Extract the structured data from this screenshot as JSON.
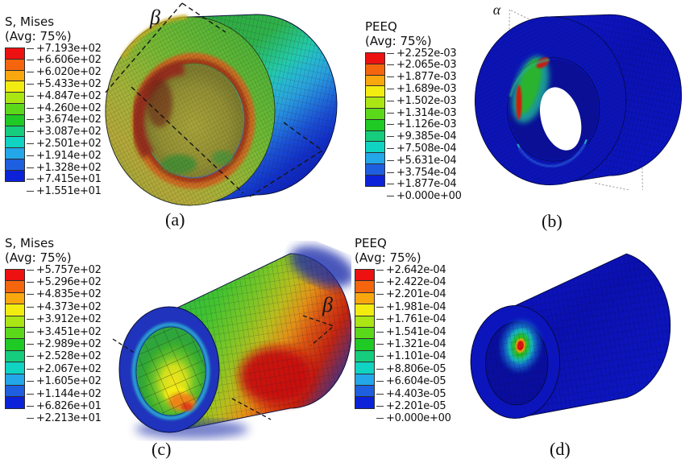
{
  "palette": [
    "#ee1111",
    "#f4650e",
    "#f9a70f",
    "#f3ec11",
    "#abe514",
    "#5cd81b",
    "#1fca25",
    "#15cd7d",
    "#10d3c2",
    "#23a7e8",
    "#1d5fdf",
    "#0b22d8"
  ],
  "model_colors": {
    "max_red": "#ee1111",
    "min_blue": "#0b22d8",
    "deep_blue_body": "#0d15c2"
  },
  "figures": [
    {
      "id": "a",
      "label": "(a)",
      "annotation": "β",
      "legend": {
        "title": "S, Mises",
        "subtitle": "(Avg: 75%)",
        "values": [
          "+7.193e+02",
          "+6.606e+02",
          "+6.020e+02",
          "+5.433e+02",
          "+4.847e+02",
          "+4.260e+02",
          "+3.674e+02",
          "+3.087e+02",
          "+2.501e+02",
          "+1.914e+02",
          "+1.328e+02",
          "+7.415e+01",
          "+1.551e+01"
        ]
      }
    },
    {
      "id": "b",
      "label": "(b)",
      "annotation": "α",
      "legend": {
        "title": "PEEQ",
        "subtitle": "(Avg: 75%)",
        "values": [
          "+2.252e-03",
          "+2.065e-03",
          "+1.877e-03",
          "+1.689e-03",
          "+1.502e-03",
          "+1.314e-03",
          "+1.126e-03",
          "+9.385e-04",
          "+7.508e-04",
          "+5.631e-04",
          "+3.754e-04",
          "+1.877e-04",
          "+0.000e+00"
        ]
      }
    },
    {
      "id": "c",
      "label": "(c)",
      "annotation": "β",
      "legend": {
        "title": "S, Mises",
        "subtitle": "(Avg: 75%)",
        "values": [
          "+5.757e+02",
          "+5.296e+02",
          "+4.835e+02",
          "+4.373e+02",
          "+3.912e+02",
          "+3.451e+02",
          "+2.989e+02",
          "+2.528e+02",
          "+2.067e+02",
          "+1.605e+02",
          "+1.144e+02",
          "+6.826e+01",
          "+2.213e+01"
        ]
      }
    },
    {
      "id": "d",
      "label": "(d)",
      "annotation": "",
      "legend": {
        "title": "PEEQ",
        "subtitle": "(Avg: 75%)",
        "values": [
          "+2.642e-04",
          "+2.422e-04",
          "+2.201e-04",
          "+1.981e-04",
          "+1.761e-04",
          "+1.541e-04",
          "+1.321e-04",
          "+1.101e-04",
          "+8.806e-05",
          "+6.604e-05",
          "+4.403e-05",
          "+2.201e-05",
          "+0.000e+00"
        ]
      }
    }
  ]
}
